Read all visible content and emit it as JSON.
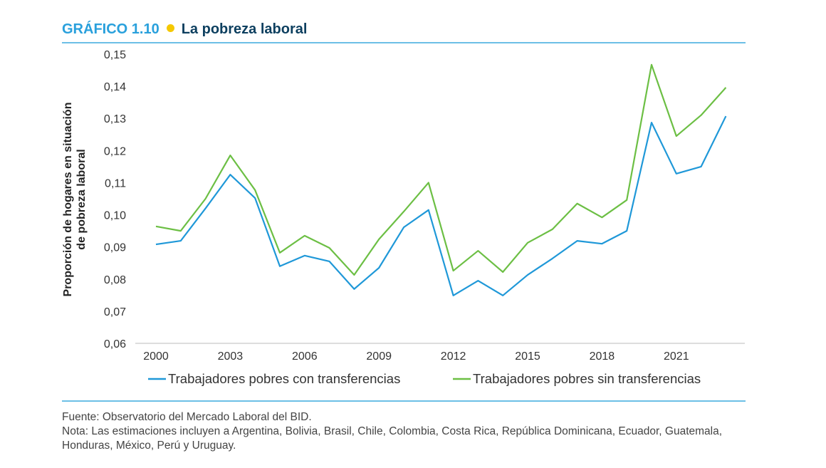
{
  "header": {
    "label": "GRÁFICO 1.10",
    "title": "La pobreza laboral",
    "accent": "#29a0dc",
    "dot_color": "#f5c800",
    "title_color": "#0d3f5f"
  },
  "chart_data": {
    "type": "line",
    "ylabel": "Proporción de hogares en situación de pobreza laboral",
    "ylabel_lines": [
      "Proporción de hogares en situación",
      "de pobreza laboral"
    ],
    "ylim": [
      0.06,
      0.15
    ],
    "yticks": [
      "0,06",
      "0,07",
      "0,08",
      "0,09",
      "0,10",
      "0,11",
      "0,12",
      "0,13",
      "0,14",
      "0,15"
    ],
    "xticks": [
      "2000",
      "2003",
      "2006",
      "2009",
      "2012",
      "2015",
      "2018",
      "2021"
    ],
    "x": [
      2000,
      2001,
      2002,
      2003,
      2004,
      2005,
      2006,
      2007,
      2008,
      2009,
      2010,
      2011,
      2012,
      2013,
      2014,
      2015,
      2016,
      2017,
      2018,
      2019,
      2020,
      2021,
      2022,
      2023
    ],
    "grid": false,
    "legend_position": "bottom",
    "series": [
      {
        "name": "Trabajadores pobres con transferencias",
        "color": "#1f98d8",
        "values": [
          0.0908,
          0.0919,
          0.102,
          0.1125,
          0.1052,
          0.084,
          0.0873,
          0.0855,
          0.0769,
          0.0835,
          0.0961,
          0.1015,
          0.0749,
          0.0795,
          0.0749,
          0.0813,
          0.0864,
          0.0919,
          0.091,
          0.095,
          0.1287,
          0.1128,
          0.115,
          0.1307
        ]
      },
      {
        "name": "Trabajadores pobres sin transferencias",
        "color": "#6cbf44",
        "values": [
          0.0964,
          0.095,
          0.105,
          0.1185,
          0.1077,
          0.0882,
          0.0935,
          0.0897,
          0.0813,
          0.0924,
          0.101,
          0.11,
          0.0826,
          0.0888,
          0.0822,
          0.0913,
          0.0955,
          0.1035,
          0.0992,
          0.1046,
          0.1467,
          0.1245,
          0.131,
          0.1396
        ]
      }
    ]
  },
  "footer": {
    "source": "Fuente: Observatorio del Mercado Laboral del BID.",
    "note": "Nota: Las estimaciones incluyen a Argentina, Bolivia, Brasil, Chile, Colombia, Costa Rica, República Dominicana, Ecuador, Guatemala, Honduras, México, Perú y Uruguay."
  }
}
